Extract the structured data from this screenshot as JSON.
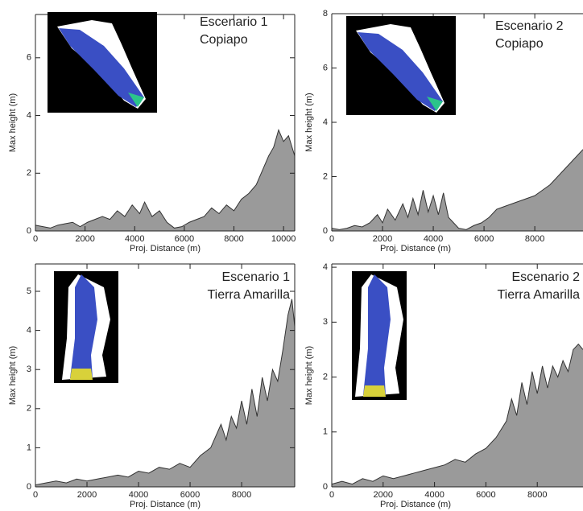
{
  "chart_data": [
    {
      "type": "area",
      "annotation": [
        "Escenario 1",
        "Copiapo"
      ],
      "xlabel": "Proj. Distance (m)",
      "ylabel": "Max height (m)",
      "color": "#9a9a9a",
      "x": [
        0,
        300,
        600,
        900,
        1200,
        1500,
        1800,
        2100,
        2400,
        2700,
        3000,
        3300,
        3600,
        3900,
        4200,
        4400,
        4700,
        5000,
        5300,
        5600,
        5900,
        6200,
        6500,
        6800,
        7100,
        7400,
        7700,
        8000,
        8300,
        8600,
        8900,
        9200,
        9400,
        9600,
        9800,
        10000,
        10200,
        10450
      ],
      "values": [
        0.2,
        0.15,
        0.1,
        0.2,
        0.25,
        0.3,
        0.15,
        0.3,
        0.4,
        0.5,
        0.4,
        0.7,
        0.5,
        0.9,
        0.6,
        1.0,
        0.5,
        0.7,
        0.3,
        0.1,
        0.15,
        0.3,
        0.4,
        0.5,
        0.8,
        0.6,
        0.9,
        0.7,
        1.1,
        1.3,
        1.6,
        2.2,
        2.6,
        2.9,
        3.5,
        3.1,
        3.3,
        2.6
      ],
      "xlim": [
        0,
        10450
      ],
      "ylim": [
        0,
        7.5
      ],
      "xticks": [
        0,
        2000,
        4000,
        6000,
        8000,
        10000
      ],
      "yticks": [
        0,
        2,
        4,
        6
      ]
    },
    {
      "type": "area",
      "annotation": [
        "Escenario 2",
        "Copiapo"
      ],
      "xlabel": "Proj. Distance (m)",
      "ylabel": "Max height (m)",
      "color": "#9a9a9a",
      "x": [
        0,
        300,
        600,
        900,
        1200,
        1500,
        1800,
        2000,
        2200,
        2500,
        2800,
        3000,
        3200,
        3400,
        3600,
        3800,
        4000,
        4200,
        4400,
        4600,
        4800,
        5000,
        5300,
        5600,
        5900,
        6200,
        6500,
        6800,
        7100,
        7400,
        7700,
        8000,
        8300,
        8600,
        8900,
        9200,
        9500,
        9900
      ],
      "values": [
        0.1,
        0.05,
        0.1,
        0.2,
        0.15,
        0.3,
        0.6,
        0.3,
        0.8,
        0.4,
        1.0,
        0.5,
        1.2,
        0.6,
        1.5,
        0.7,
        1.3,
        0.6,
        1.4,
        0.5,
        0.3,
        0.1,
        0.05,
        0.2,
        0.3,
        0.5,
        0.8,
        0.9,
        1.0,
        1.1,
        1.2,
        1.3,
        1.5,
        1.7,
        2.0,
        2.3,
        2.6,
        3.0
      ],
      "xlim": [
        0,
        9900
      ],
      "ylim": [
        0,
        8
      ],
      "xticks": [
        0,
        2000,
        4000,
        6000,
        8000
      ],
      "yticks": [
        0,
        2,
        4,
        6,
        8
      ]
    },
    {
      "type": "area",
      "annotation": [
        "Escenario 1",
        "Tierra Amarilla"
      ],
      "xlabel": "Proj. Distance (m)",
      "ylabel": "Max height (m)",
      "color": "#9a9a9a",
      "x": [
        0,
        400,
        800,
        1200,
        1600,
        2000,
        2400,
        2800,
        3200,
        3600,
        4000,
        4400,
        4800,
        5200,
        5600,
        6000,
        6400,
        6800,
        7000,
        7200,
        7400,
        7600,
        7800,
        8000,
        8200,
        8400,
        8600,
        8800,
        9000,
        9200,
        9400,
        9600,
        9800,
        9950,
        10060
      ],
      "values": [
        0.05,
        0.1,
        0.15,
        0.1,
        0.2,
        0.15,
        0.2,
        0.25,
        0.3,
        0.25,
        0.4,
        0.35,
        0.5,
        0.45,
        0.6,
        0.5,
        0.8,
        1.0,
        1.3,
        1.6,
        1.2,
        1.8,
        1.5,
        2.2,
        1.6,
        2.5,
        1.8,
        2.8,
        2.2,
        3.0,
        2.7,
        3.5,
        4.4,
        4.8,
        4.1
      ],
      "xlim": [
        0,
        10060
      ],
      "ylim": [
        0,
        5.7
      ],
      "xticks": [
        0,
        2000,
        4000,
        6000,
        8000
      ],
      "yticks": [
        0,
        1,
        2,
        3,
        4,
        5
      ]
    },
    {
      "type": "area",
      "annotation": [
        "Escenario 2",
        "Tierra Amarilla"
      ],
      "xlabel": "Proj. Distance (m)",
      "ylabel": "Max height (m)",
      "color": "#9a9a9a",
      "x": [
        0,
        400,
        800,
        1200,
        1600,
        2000,
        2400,
        2800,
        3200,
        3600,
        4000,
        4400,
        4800,
        5200,
        5600,
        6000,
        6400,
        6800,
        7000,
        7200,
        7400,
        7600,
        7800,
        8000,
        8200,
        8400,
        8600,
        8800,
        9000,
        9200,
        9400,
        9600,
        9780
      ],
      "values": [
        0.05,
        0.1,
        0.05,
        0.15,
        0.1,
        0.2,
        0.15,
        0.2,
        0.25,
        0.3,
        0.35,
        0.4,
        0.5,
        0.45,
        0.6,
        0.7,
        0.9,
        1.2,
        1.6,
        1.3,
        1.9,
        1.5,
        2.1,
        1.7,
        2.2,
        1.8,
        2.2,
        2.0,
        2.3,
        2.1,
        2.5,
        2.6,
        2.5
      ],
      "xlim": [
        0,
        9780
      ],
      "ylim": [
        0,
        4.06
      ],
      "xticks": [
        0,
        2000,
        4000,
        6000,
        8000
      ],
      "yticks": [
        0,
        1,
        2,
        3,
        4
      ]
    }
  ]
}
